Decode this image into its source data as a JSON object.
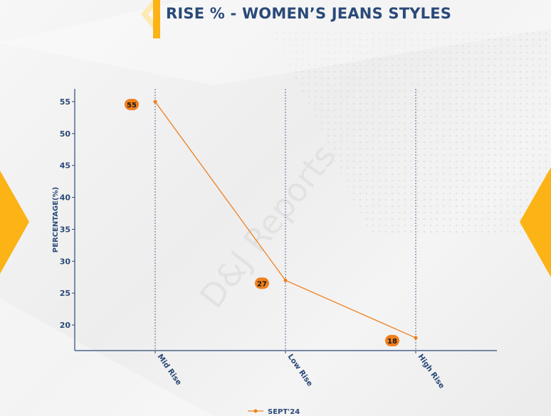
{
  "title": "RISE % - WOMEN’S JEANS STYLES",
  "watermark": "D&J Reports",
  "colors": {
    "title": "#2a4a78",
    "accent_yellow": "#fcb316",
    "line": "#f07f1d",
    "axis": "#2a4a78"
  },
  "chart_data": {
    "type": "line",
    "title": "RISE % - WOMEN’S JEANS STYLES",
    "xlabel": "",
    "ylabel": "PERCENTAGE(%)",
    "categories": [
      "Mid Rise",
      "Low Rise",
      "High Rise"
    ],
    "series": [
      {
        "name": "SEPT'24",
        "values": [
          55,
          27,
          18
        ]
      }
    ],
    "ylim": [
      16,
      57
    ],
    "yticks": [
      20,
      25,
      30,
      35,
      40,
      45,
      50,
      55
    ],
    "grid": "vertical dashed at categories",
    "legend": "bottom-center"
  }
}
